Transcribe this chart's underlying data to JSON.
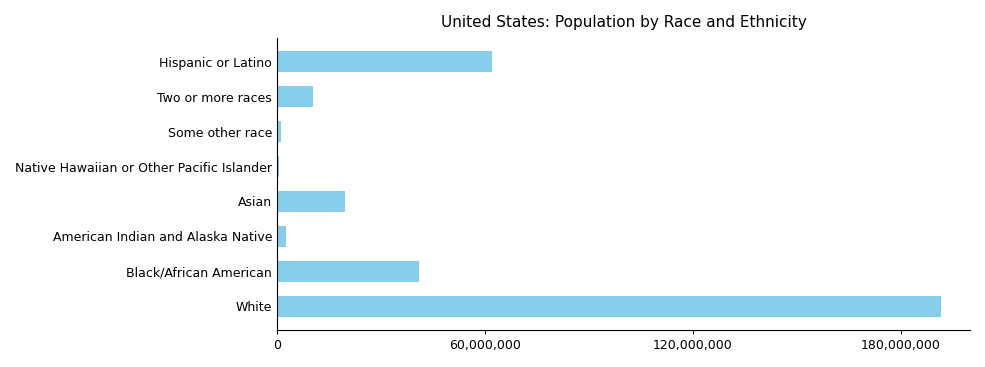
{
  "title": "United States: Population by Race and Ethnicity",
  "categories": [
    "White",
    "Black/African American",
    "American Indian and Alaska Native",
    "Asian",
    "Native Hawaiian or Other Pacific Islander",
    "Some other race",
    "Two or more races",
    "Hispanic or Latino"
  ],
  "values": [
    191700000,
    41100000,
    2770000,
    19620000,
    570000,
    1220000,
    10490000,
    62080000
  ],
  "bar_color": "#87CEEB",
  "xlim": [
    0,
    200000000
  ],
  "xticks": [
    0,
    60000000,
    120000000,
    180000000
  ],
  "xtick_labels": [
    "0",
    "60,000,000",
    "120,000,000",
    "180,000,000"
  ],
  "title_fontsize": 11,
  "tick_fontsize": 9,
  "label_fontsize": 9,
  "bar_height": 0.6,
  "background_color": "#ffffff"
}
